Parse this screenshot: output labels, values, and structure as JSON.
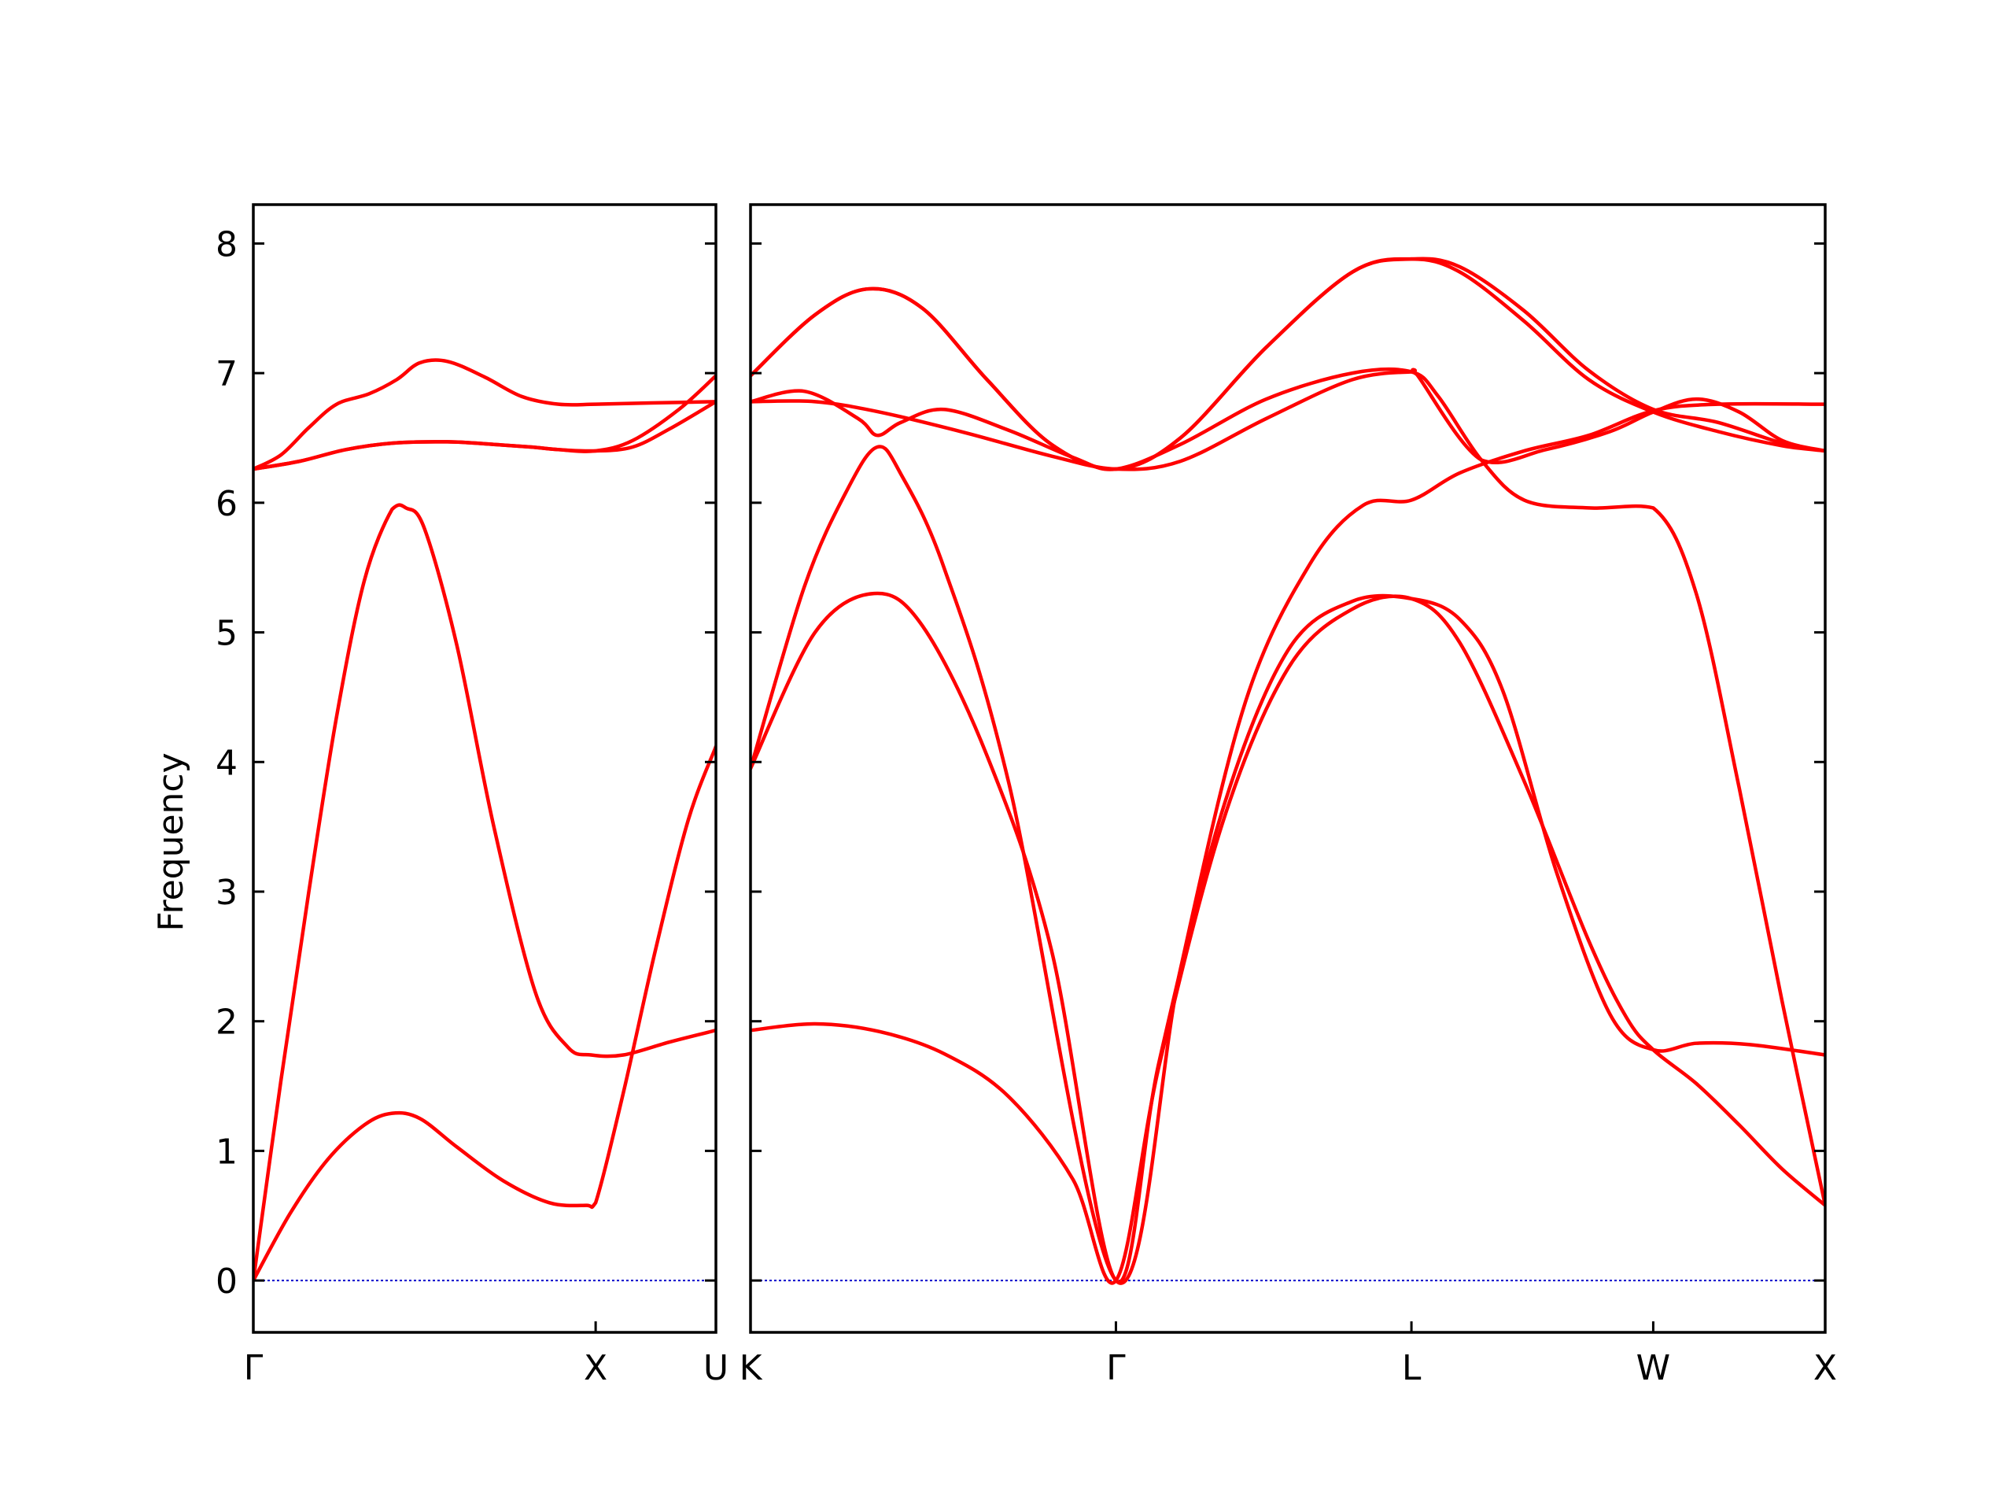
{
  "chart_data": {
    "type": "line",
    "ylabel": "Frequency",
    "ylim": [
      -0.4,
      8.3
    ],
    "y_ticks": [
      "0",
      "1",
      "2",
      "3",
      "4",
      "5",
      "6",
      "7",
      "8"
    ],
    "grid": false,
    "colors": {
      "bands": "#ff0000",
      "zero_line": "#0000cc",
      "axes": "#000000"
    },
    "panels": [
      {
        "name": "panel-left",
        "path_labels": [
          "Γ",
          "X",
          "U"
        ],
        "x_ticks": [
          0.0,
          0.74,
          1.0
        ],
        "xlim": [
          0.0,
          1.0
        ],
        "series": [
          {
            "points": [
              [
                0.0,
                0.0
              ],
              [
                0.08,
                0.52
              ],
              [
                0.16,
                0.93
              ],
              [
                0.24,
                1.2
              ],
              [
                0.3,
                1.29
              ],
              [
                0.36,
                1.25
              ],
              [
                0.44,
                1.03
              ],
              [
                0.54,
                0.77
              ],
              [
                0.64,
                0.6
              ],
              [
                0.72,
                0.58
              ],
              [
                0.74,
                0.6
              ],
              [
                0.8,
                1.45
              ],
              [
                0.87,
                2.56
              ],
              [
                0.94,
                3.55
              ],
              [
                1.0,
                4.12
              ]
            ]
          },
          {
            "points": [
              [
                0.0,
                0.0
              ],
              [
                0.06,
                1.55
              ],
              [
                0.12,
                3.0
              ],
              [
                0.18,
                4.35
              ],
              [
                0.24,
                5.4
              ],
              [
                0.3,
                5.95
              ],
              [
                0.33,
                5.96
              ],
              [
                0.37,
                5.8
              ],
              [
                0.44,
                4.9
              ],
              [
                0.52,
                3.5
              ],
              [
                0.61,
                2.22
              ],
              [
                0.68,
                1.8
              ],
              [
                0.73,
                1.74
              ],
              [
                0.8,
                1.74
              ],
              [
                0.9,
                1.84
              ],
              [
                1.0,
                1.93
              ]
            ]
          },
          {
            "points": [
              [
                0.0,
                6.26
              ],
              [
                0.1,
                6.32
              ],
              [
                0.2,
                6.41
              ],
              [
                0.3,
                6.46
              ],
              [
                0.42,
                6.47
              ],
              [
                0.52,
                6.45
              ],
              [
                0.6,
                6.43
              ],
              [
                0.66,
                6.41
              ],
              [
                0.74,
                6.4
              ],
              [
                0.82,
                6.43
              ],
              [
                0.9,
                6.57
              ],
              [
                1.0,
                6.78
              ]
            ]
          },
          {
            "points": [
              [
                0.0,
                6.26
              ],
              [
                0.1,
                6.32
              ],
              [
                0.2,
                6.41
              ],
              [
                0.3,
                6.46
              ],
              [
                0.42,
                6.47
              ],
              [
                0.52,
                6.45
              ],
              [
                0.6,
                6.43
              ],
              [
                0.66,
                6.41
              ],
              [
                0.74,
                6.4
              ],
              [
                0.82,
                6.48
              ],
              [
                0.92,
                6.72
              ],
              [
                1.0,
                6.98
              ]
            ]
          },
          {
            "points": [
              [
                0.0,
                6.26
              ],
              [
                0.06,
                6.37
              ],
              [
                0.12,
                6.58
              ],
              [
                0.18,
                6.76
              ],
              [
                0.25,
                6.84
              ],
              [
                0.31,
                6.95
              ],
              [
                0.36,
                7.08
              ],
              [
                0.42,
                7.09
              ],
              [
                0.5,
                6.97
              ],
              [
                0.58,
                6.82
              ],
              [
                0.66,
                6.76
              ],
              [
                0.74,
                6.76
              ],
              [
                0.86,
                6.77
              ],
              [
                1.0,
                6.78
              ]
            ]
          }
        ]
      },
      {
        "name": "panel-right",
        "path_labels": [
          "K",
          "Γ",
          "L",
          "W",
          "X"
        ],
        "x_ticks": [
          0.0,
          0.34,
          0.615,
          0.84,
          1.0
        ],
        "xlim": [
          0.0,
          1.0
        ],
        "series": [
          {
            "points": [
              [
                0.0,
                1.93
              ],
              [
                0.06,
                1.98
              ],
              [
                0.12,
                1.92
              ],
              [
                0.18,
                1.75
              ],
              [
                0.24,
                1.42
              ],
              [
                0.3,
                0.78
              ],
              [
                0.34,
                0.0
              ],
              [
                0.38,
                1.65
              ],
              [
                0.44,
                3.55
              ],
              [
                0.5,
                4.72
              ],
              [
                0.56,
                5.18
              ],
              [
                0.615,
                5.26
              ],
              [
                0.66,
                4.92
              ],
              [
                0.72,
                3.85
              ],
              [
                0.78,
                2.62
              ],
              [
                0.815,
                2.03
              ],
              [
                0.84,
                1.78
              ],
              [
                0.88,
                1.52
              ],
              [
                0.92,
                1.2
              ],
              [
                0.96,
                0.86
              ],
              [
                1.0,
                0.58
              ]
            ]
          },
          {
            "points": [
              [
                0.0,
                3.95
              ],
              [
                0.06,
                5.0
              ],
              [
                0.115,
                5.3
              ],
              [
                0.16,
                5.05
              ],
              [
                0.22,
                4.05
              ],
              [
                0.28,
                2.55
              ],
              [
                0.34,
                0.0
              ],
              [
                0.38,
                1.68
              ],
              [
                0.44,
                3.65
              ],
              [
                0.5,
                4.86
              ],
              [
                0.56,
                5.24
              ],
              [
                0.615,
                5.26
              ],
              [
                0.66,
                5.1
              ],
              [
                0.7,
                4.55
              ],
              [
                0.75,
                3.15
              ],
              [
                0.8,
                2.05
              ],
              [
                0.84,
                1.78
              ],
              [
                0.88,
                1.83
              ],
              [
                0.93,
                1.82
              ],
              [
                1.0,
                1.74
              ]
            ]
          },
          {
            "points": [
              [
                0.0,
                3.95
              ],
              [
                0.05,
                5.35
              ],
              [
                0.09,
                6.1
              ],
              [
                0.118,
                6.43
              ],
              [
                0.14,
                6.22
              ],
              [
                0.18,
                5.5
              ],
              [
                0.24,
                3.85
              ],
              [
                0.34,
                0.0
              ],
              [
                0.4,
                2.4
              ],
              [
                0.46,
                4.45
              ],
              [
                0.52,
                5.52
              ],
              [
                0.57,
                5.98
              ],
              [
                0.615,
                6.02
              ],
              [
                0.66,
                6.23
              ],
              [
                0.72,
                6.4
              ],
              [
                0.78,
                6.52
              ],
              [
                0.84,
                6.71
              ],
              [
                0.9,
                6.76
              ],
              [
                1.0,
                6.76
              ]
            ]
          },
          {
            "points": [
              [
                0.0,
                6.78
              ],
              [
                0.05,
                6.86
              ],
              [
                0.1,
                6.65
              ],
              [
                0.118,
                6.52
              ],
              [
                0.14,
                6.62
              ],
              [
                0.18,
                6.72
              ],
              [
                0.24,
                6.56
              ],
              [
                0.3,
                6.35
              ],
              [
                0.34,
                6.26
              ],
              [
                0.4,
                6.45
              ],
              [
                0.48,
                6.8
              ],
              [
                0.56,
                7.0
              ],
              [
                0.615,
                7.01
              ],
              [
                0.64,
                6.82
              ],
              [
                0.68,
                6.33
              ],
              [
                0.72,
                6.02
              ],
              [
                0.78,
                5.96
              ],
              [
                0.84,
                5.96
              ],
              [
                0.88,
                5.3
              ],
              [
                0.92,
                3.8
              ],
              [
                0.96,
                2.15
              ],
              [
                1.0,
                0.58
              ]
            ]
          },
          {
            "points": [
              [
                0.0,
                6.78
              ],
              [
                0.06,
                6.78
              ],
              [
                0.12,
                6.7
              ],
              [
                0.2,
                6.54
              ],
              [
                0.28,
                6.36
              ],
              [
                0.34,
                6.26
              ],
              [
                0.4,
                6.32
              ],
              [
                0.48,
                6.65
              ],
              [
                0.56,
                6.95
              ],
              [
                0.615,
                7.01
              ],
              [
                0.62,
                6.99
              ],
              [
                0.68,
                6.33
              ],
              [
                0.74,
                6.41
              ],
              [
                0.8,
                6.55
              ],
              [
                0.84,
                6.7
              ],
              [
                0.88,
                6.8
              ],
              [
                0.92,
                6.7
              ],
              [
                0.96,
                6.48
              ],
              [
                1.0,
                6.4
              ]
            ]
          },
          {
            "points": [
              [
                0.0,
                6.98
              ],
              [
                0.06,
                7.45
              ],
              [
                0.11,
                7.65
              ],
              [
                0.16,
                7.5
              ],
              [
                0.22,
                6.95
              ],
              [
                0.28,
                6.45
              ],
              [
                0.34,
                6.26
              ],
              [
                0.4,
                6.5
              ],
              [
                0.48,
                7.2
              ],
              [
                0.56,
                7.78
              ],
              [
                0.615,
                7.88
              ],
              [
                0.66,
                7.78
              ],
              [
                0.72,
                7.4
              ],
              [
                0.78,
                6.95
              ],
              [
                0.84,
                6.7
              ],
              [
                0.9,
                6.55
              ],
              [
                0.96,
                6.44
              ],
              [
                1.0,
                6.4
              ]
            ]
          },
          {
            "points": [
              [
                0.0,
                6.98
              ],
              [
                0.06,
                7.45
              ],
              [
                0.11,
                7.65
              ],
              [
                0.16,
                7.5
              ],
              [
                0.22,
                6.95
              ],
              [
                0.28,
                6.45
              ],
              [
                0.34,
                6.26
              ],
              [
                0.4,
                6.5
              ],
              [
                0.48,
                7.2
              ],
              [
                0.56,
                7.78
              ],
              [
                0.615,
                7.88
              ],
              [
                0.66,
                7.82
              ],
              [
                0.72,
                7.48
              ],
              [
                0.78,
                7.02
              ],
              [
                0.84,
                6.72
              ],
              [
                0.9,
                6.62
              ],
              [
                0.96,
                6.46
              ],
              [
                1.0,
                6.4
              ]
            ]
          }
        ]
      }
    ]
  }
}
